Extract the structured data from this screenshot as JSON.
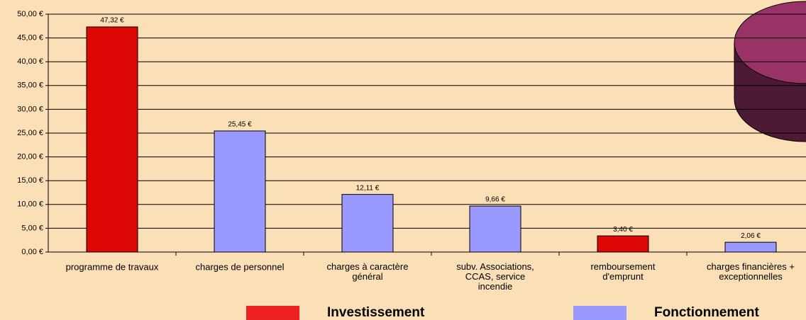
{
  "chart_data": {
    "type": "bar",
    "categories": [
      "programme de travaux",
      "charges de personnel",
      "charges à caractère\ngénéral",
      "subv. Associations,\nCCAS, service\nincendie",
      "remboursement\nd'emprunt",
      "charges financières +\nexceptionnelles"
    ],
    "values": [
      47.32,
      25.45,
      12.11,
      9.66,
      3.4,
      2.06
    ],
    "value_labels": [
      "47,32 €",
      "25,45 €",
      "12,11 €",
      "9,66 €",
      "3,40 €",
      "2,06 €"
    ],
    "colors": [
      "#dd0806",
      "#9999ff",
      "#9999ff",
      "#9999ff",
      "#dd0806",
      "#9999ff"
    ],
    "legend": [
      {
        "name": "Investissement",
        "color": "#ee2222"
      },
      {
        "name": "Fonctionnement",
        "color": "#9999ff"
      }
    ],
    "ylim": [
      0,
      50
    ],
    "yticks": [
      {
        "value": 0,
        "label": "0,00 €"
      },
      {
        "value": 5,
        "label": "5,00 €"
      },
      {
        "value": 10,
        "label": "10,00 €"
      },
      {
        "value": 15,
        "label": "15,00 €"
      },
      {
        "value": 20,
        "label": "20,00 €"
      },
      {
        "value": 25,
        "label": "25,00 €"
      },
      {
        "value": 30,
        "label": "30,00 €"
      },
      {
        "value": 35,
        "label": "35,00 €"
      },
      {
        "value": 40,
        "label": "40,00 €"
      },
      {
        "value": 45,
        "label": "45,00 €"
      },
      {
        "value": 50,
        "label": "50,00 €"
      }
    ],
    "grid": true
  }
}
